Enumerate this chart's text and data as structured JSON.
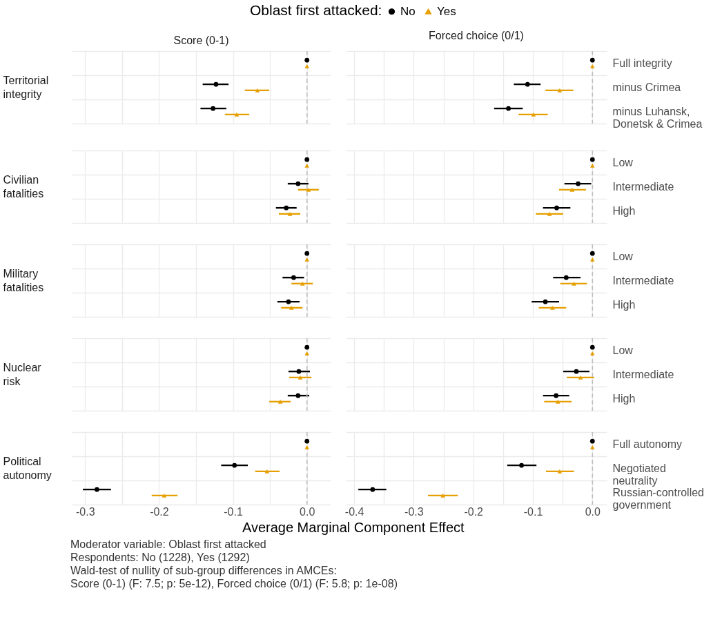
{
  "chart_data": [
    {
      "type": "scatter",
      "orientation": "horizontal",
      "title": "Score (0-1)",
      "ylabel": "Territorial integrity",
      "legend_title": "Oblast first attacked:",
      "legend": "top",
      "categories": [
        "Full integrity",
        "minus Crimea",
        "minus Luhansk, Donetsk & Crimea"
      ],
      "xlim": [
        -0.318,
        0.032
      ],
      "xticks": [
        {
          "value": -0.3,
          "label": null
        },
        {
          "value": -0.25,
          "label": null
        },
        {
          "value": -0.2,
          "label": null
        },
        {
          "value": -0.15,
          "label": null
        },
        {
          "value": -0.1,
          "label": null
        },
        {
          "value": -0.05,
          "label": null
        },
        {
          "value": 0,
          "label": null
        }
      ],
      "grid": true,
      "tick_labels": false,
      "ref_lines": [
        {
          "axis": "x",
          "value": 0,
          "color": "#bebebe",
          "line_style": "dashed"
        }
      ],
      "series": [
        {
          "name": "No",
          "color": "#000000",
          "marker": "circle",
          "values": [
            0,
            -0.123,
            -0.127
          ],
          "errors": [
            null,
            [
              -0.141,
              -0.106
            ],
            [
              -0.144,
              -0.109
            ]
          ]
        },
        {
          "name": "Yes",
          "color": "#e69f00",
          "marker": "triangle",
          "values": [
            0,
            -0.067,
            -0.095
          ],
          "errors": [
            null,
            [
              -0.084,
              -0.051
            ],
            [
              -0.111,
              -0.078
            ]
          ]
        }
      ]
    },
    {
      "type": "scatter",
      "orientation": "horizontal",
      "title": "Forced choice (0/1)",
      "categories": [
        "Full integrity",
        "minus Crimea",
        "minus Luhansk, Donetsk & Crimea"
      ],
      "xlim": [
        -0.414,
        0.024
      ],
      "xticks": [
        {
          "value": -0.4,
          "label": null
        },
        {
          "value": -0.35,
          "label": null
        },
        {
          "value": -0.3,
          "label": null
        },
        {
          "value": -0.25,
          "label": null
        },
        {
          "value": -0.2,
          "label": null
        },
        {
          "value": -0.15,
          "label": null
        },
        {
          "value": -0.1,
          "label": null
        },
        {
          "value": -0.05,
          "label": null
        },
        {
          "value": 0,
          "label": null
        }
      ],
      "grid": true,
      "tick_labels": "y",
      "ref_lines": [
        {
          "axis": "x",
          "value": 0,
          "color": "#bebebe",
          "line_style": "dashed"
        }
      ],
      "series": [
        {
          "name": "No",
          "color": "#000000",
          "marker": "circle",
          "values": [
            0,
            -0.109,
            -0.141
          ],
          "errors": [
            null,
            [
              -0.132,
              -0.087
            ],
            [
              -0.165,
              -0.117
            ]
          ]
        },
        {
          "name": "Yes",
          "color": "#e69f00",
          "marker": "triangle",
          "values": [
            0,
            -0.055,
            -0.099
          ],
          "errors": [
            null,
            [
              -0.079,
              -0.032
            ],
            [
              -0.124,
              -0.075
            ]
          ]
        }
      ]
    },
    {
      "type": "scatter",
      "orientation": "horizontal",
      "ylabel": "Civilian fatalities",
      "categories": [
        "Low",
        "Intermediate",
        "High"
      ],
      "xlim": [
        -0.318,
        0.032
      ],
      "xticks": [
        {
          "value": -0.3,
          "label": null
        },
        {
          "value": -0.25,
          "label": null
        },
        {
          "value": -0.2,
          "label": null
        },
        {
          "value": -0.15,
          "label": null
        },
        {
          "value": -0.1,
          "label": null
        },
        {
          "value": -0.05,
          "label": null
        },
        {
          "value": 0,
          "label": null
        }
      ],
      "grid": true,
      "tick_labels": false,
      "ref_lines": [
        {
          "axis": "x",
          "value": 0,
          "color": "#bebebe",
          "line_style": "dashed"
        }
      ],
      "series": [
        {
          "name": "No",
          "color": "#000000",
          "marker": "circle",
          "values": [
            0,
            -0.012,
            -0.028
          ],
          "errors": [
            null,
            [
              -0.026,
              0.002
            ],
            [
              -0.042,
              -0.014
            ]
          ]
        },
        {
          "name": "Yes",
          "color": "#e69f00",
          "marker": "triangle",
          "values": [
            0,
            0.002,
            -0.023
          ],
          "errors": [
            null,
            [
              -0.012,
              0.016
            ],
            [
              -0.038,
              -0.009
            ]
          ]
        }
      ]
    },
    {
      "type": "scatter",
      "orientation": "horizontal",
      "categories": [
        "Low",
        "Intermediate",
        "High"
      ],
      "xlim": [
        -0.414,
        0.024
      ],
      "xticks": [
        {
          "value": -0.4,
          "label": null
        },
        {
          "value": -0.35,
          "label": null
        },
        {
          "value": -0.3,
          "label": null
        },
        {
          "value": -0.25,
          "label": null
        },
        {
          "value": -0.2,
          "label": null
        },
        {
          "value": -0.15,
          "label": null
        },
        {
          "value": -0.1,
          "label": null
        },
        {
          "value": -0.05,
          "label": null
        },
        {
          "value": 0,
          "label": null
        }
      ],
      "grid": true,
      "tick_labels": "y",
      "ref_lines": [
        {
          "axis": "x",
          "value": 0,
          "color": "#bebebe",
          "line_style": "dashed"
        }
      ],
      "series": [
        {
          "name": "No",
          "color": "#000000",
          "marker": "circle",
          "values": [
            0,
            -0.024,
            -0.06
          ],
          "errors": [
            null,
            [
              -0.047,
              -0.002
            ],
            [
              -0.083,
              -0.037
            ]
          ]
        },
        {
          "name": "Yes",
          "color": "#e69f00",
          "marker": "triangle",
          "values": [
            0,
            -0.034,
            -0.072
          ],
          "errors": [
            null,
            [
              -0.056,
              -0.011
            ],
            [
              -0.095,
              -0.049
            ]
          ]
        }
      ]
    },
    {
      "type": "scatter",
      "orientation": "horizontal",
      "ylabel": "Military fatalities",
      "categories": [
        "Low",
        "Intermediate",
        "High"
      ],
      "xlim": [
        -0.318,
        0.032
      ],
      "xticks": [
        {
          "value": -0.3,
          "label": null
        },
        {
          "value": -0.25,
          "label": null
        },
        {
          "value": -0.2,
          "label": null
        },
        {
          "value": -0.15,
          "label": null
        },
        {
          "value": -0.1,
          "label": null
        },
        {
          "value": -0.05,
          "label": null
        },
        {
          "value": 0,
          "label": null
        }
      ],
      "grid": true,
      "tick_labels": false,
      "ref_lines": [
        {
          "axis": "x",
          "value": 0,
          "color": "#bebebe",
          "line_style": "dashed"
        }
      ],
      "series": [
        {
          "name": "No",
          "color": "#000000",
          "marker": "circle",
          "values": [
            0,
            -0.018,
            -0.025
          ],
          "errors": [
            null,
            [
              -0.033,
              -0.004
            ],
            [
              -0.04,
              -0.01
            ]
          ]
        },
        {
          "name": "Yes",
          "color": "#e69f00",
          "marker": "triangle",
          "values": [
            0,
            -0.006,
            -0.021
          ],
          "errors": [
            null,
            [
              -0.021,
              0.008
            ],
            [
              -0.035,
              -0.006
            ]
          ]
        }
      ]
    },
    {
      "type": "scatter",
      "orientation": "horizontal",
      "categories": [
        "Low",
        "Intermediate",
        "High"
      ],
      "xlim": [
        -0.414,
        0.024
      ],
      "xticks": [
        {
          "value": -0.4,
          "label": null
        },
        {
          "value": -0.35,
          "label": null
        },
        {
          "value": -0.3,
          "label": null
        },
        {
          "value": -0.25,
          "label": null
        },
        {
          "value": -0.2,
          "label": null
        },
        {
          "value": -0.15,
          "label": null
        },
        {
          "value": -0.1,
          "label": null
        },
        {
          "value": -0.05,
          "label": null
        },
        {
          "value": 0,
          "label": null
        }
      ],
      "grid": true,
      "tick_labels": "y",
      "ref_lines": [
        {
          "axis": "x",
          "value": 0,
          "color": "#bebebe",
          "line_style": "dashed"
        }
      ],
      "series": [
        {
          "name": "No",
          "color": "#000000",
          "marker": "circle",
          "values": [
            0,
            -0.044,
            -0.079
          ],
          "errors": [
            null,
            [
              -0.066,
              -0.02
            ],
            [
              -0.102,
              -0.056
            ]
          ]
        },
        {
          "name": "Yes",
          "color": "#e69f00",
          "marker": "triangle",
          "values": [
            0,
            -0.031,
            -0.067
          ],
          "errors": [
            null,
            [
              -0.054,
              -0.009
            ],
            [
              -0.09,
              -0.044
            ]
          ]
        }
      ]
    },
    {
      "type": "scatter",
      "orientation": "horizontal",
      "ylabel": "Nuclear risk",
      "categories": [
        "Low",
        "Intermediate",
        "High"
      ],
      "xlim": [
        -0.318,
        0.032
      ],
      "xticks": [
        {
          "value": -0.3,
          "label": null
        },
        {
          "value": -0.25,
          "label": null
        },
        {
          "value": -0.2,
          "label": null
        },
        {
          "value": -0.15,
          "label": null
        },
        {
          "value": -0.1,
          "label": null
        },
        {
          "value": -0.05,
          "label": null
        },
        {
          "value": 0,
          "label": null
        }
      ],
      "grid": true,
      "tick_labels": false,
      "ref_lines": [
        {
          "axis": "x",
          "value": 0,
          "color": "#bebebe",
          "line_style": "dashed"
        }
      ],
      "series": [
        {
          "name": "No",
          "color": "#000000",
          "marker": "circle",
          "values": [
            0,
            -0.011,
            -0.012
          ],
          "errors": [
            null,
            [
              -0.025,
              0.004
            ],
            [
              -0.026,
              0.003
            ]
          ]
        },
        {
          "name": "Yes",
          "color": "#e69f00",
          "marker": "triangle",
          "values": [
            0,
            -0.009,
            -0.036
          ],
          "errors": [
            null,
            [
              -0.024,
              0.006
            ],
            [
              -0.051,
              -0.022
            ]
          ]
        }
      ]
    },
    {
      "type": "scatter",
      "orientation": "horizontal",
      "categories": [
        "Low",
        "Intermediate",
        "High"
      ],
      "xlim": [
        -0.414,
        0.024
      ],
      "xticks": [
        {
          "value": -0.4,
          "label": null
        },
        {
          "value": -0.35,
          "label": null
        },
        {
          "value": -0.3,
          "label": null
        },
        {
          "value": -0.25,
          "label": null
        },
        {
          "value": -0.2,
          "label": null
        },
        {
          "value": -0.15,
          "label": null
        },
        {
          "value": -0.1,
          "label": null
        },
        {
          "value": -0.05,
          "label": null
        },
        {
          "value": 0,
          "label": null
        }
      ],
      "grid": true,
      "tick_labels": "y",
      "ref_lines": [
        {
          "axis": "x",
          "value": 0,
          "color": "#bebebe",
          "line_style": "dashed"
        }
      ],
      "series": [
        {
          "name": "No",
          "color": "#000000",
          "marker": "circle",
          "values": [
            0,
            -0.027,
            -0.061
          ],
          "errors": [
            null,
            [
              -0.049,
              -0.005
            ],
            [
              -0.083,
              -0.039
            ]
          ]
        },
        {
          "name": "Yes",
          "color": "#e69f00",
          "marker": "triangle",
          "values": [
            0,
            -0.02,
            -0.058
          ],
          "errors": [
            null,
            [
              -0.043,
              0.003
            ],
            [
              -0.081,
              -0.035
            ]
          ]
        }
      ]
    },
    {
      "type": "scatter",
      "orientation": "horizontal",
      "ylabel": "Political autonomy",
      "xlabel": "Average Marginal Component Effect",
      "categories": [
        "Full autonomy",
        "Negotiated neutrality",
        "Russian-controlled government"
      ],
      "xlim": [
        -0.318,
        0.032
      ],
      "xticks": [
        -0.3,
        {
          "value": -0.25,
          "label": null
        },
        -0.2,
        {
          "value": -0.15,
          "label": null
        },
        -0.1,
        {
          "value": -0.05,
          "label": null
        },
        {
          "value": 0,
          "label": "0.0"
        }
      ],
      "grid": true,
      "tick_labels": "x",
      "ref_lines": [
        {
          "axis": "x",
          "value": 0,
          "color": "#bebebe",
          "line_style": "dashed"
        }
      ],
      "series": [
        {
          "name": "No",
          "color": "#000000",
          "marker": "circle",
          "values": [
            0,
            -0.098,
            -0.284
          ],
          "errors": [
            null,
            [
              -0.116,
              -0.08
            ],
            [
              -0.303,
              -0.265
            ]
          ]
        },
        {
          "name": "Yes",
          "color": "#e69f00",
          "marker": "triangle",
          "values": [
            0,
            -0.054,
            -0.193
          ],
          "errors": [
            null,
            [
              -0.07,
              -0.037
            ],
            [
              -0.21,
              -0.175
            ]
          ]
        }
      ]
    },
    {
      "type": "scatter",
      "orientation": "horizontal",
      "categories": [
        "Full autonomy",
        "Negotiated neutrality",
        "Russian-controlled government"
      ],
      "xlim": [
        -0.414,
        0.024
      ],
      "xticks": [
        -0.4,
        {
          "value": -0.35,
          "label": null
        },
        -0.3,
        {
          "value": -0.25,
          "label": null
        },
        -0.2,
        {
          "value": -0.15,
          "label": null
        },
        -0.1,
        {
          "value": -0.05,
          "label": null
        },
        {
          "value": 0,
          "label": "0.0"
        }
      ],
      "grid": true,
      "ref_lines": [
        {
          "axis": "x",
          "value": 0,
          "color": "#bebebe",
          "line_style": "dashed"
        }
      ],
      "annotations": [
        "Moderator variable: Oblast first attacked",
        "Respondents: No (1228), Yes (1292)",
        "Wald-test of nullity of sub-group differences in AMCEs:",
        "Score (0-1) (F: 7.5; p: 5e-12), Forced choice (0/1) (F: 5.8; p: 1e-08)"
      ],
      "series": [
        {
          "name": "No",
          "color": "#000000",
          "marker": "circle",
          "values": [
            0,
            -0.119,
            -0.369
          ],
          "errors": [
            null,
            [
              -0.143,
              -0.094
            ],
            [
              -0.393,
              -0.346
            ]
          ]
        },
        {
          "name": "Yes",
          "color": "#e69f00",
          "marker": "triangle",
          "values": [
            0,
            -0.055,
            -0.251
          ],
          "errors": [
            null,
            [
              -0.078,
              -0.031
            ],
            [
              -0.276,
              -0.226
            ]
          ]
        }
      ]
    }
  ]
}
